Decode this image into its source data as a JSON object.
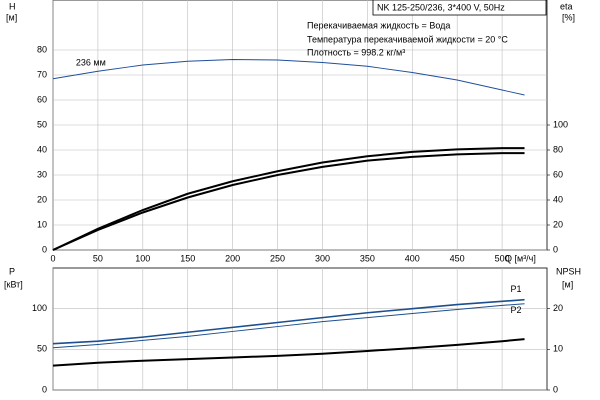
{
  "chart_data": [
    {
      "type": "line",
      "title": "NK 125-250/236, 3*400 V, 50Hz",
      "notes": [
        "Перекачиваемая жидкость = Вода",
        "Температура перекачиваемой жидкости = 20 °C",
        "Плотность = 998.2 кг/м³"
      ],
      "y_label": "H",
      "y_unit": "[м]",
      "y2_label": "eta",
      "y2_unit": "[%]",
      "x_label": "Q [м³/ч]",
      "x": [
        0,
        50,
        100,
        150,
        200,
        250,
        300,
        350,
        400,
        450,
        500,
        525
      ],
      "xlim": [
        0,
        550
      ],
      "xticks": [
        0,
        50,
        100,
        150,
        200,
        250,
        300,
        350,
        400,
        450,
        500
      ],
      "ylim": [
        0,
        100
      ],
      "yticks": [
        0,
        10,
        20,
        30,
        40,
        50,
        60,
        70,
        80
      ],
      "y2lim": [
        0,
        200
      ],
      "y2ticks": [
        0,
        20,
        40,
        60,
        80,
        100
      ],
      "grid": true,
      "series": [
        {
          "name": "236 мм",
          "color": "#1f4e9c",
          "values": [
            68.5,
            71.5,
            74,
            75.5,
            76.2,
            76,
            75,
            73.5,
            71,
            68,
            64,
            62
          ]
        },
        {
          "color": "#000000",
          "axis": "y2",
          "values": [
            0,
            17,
            32,
            45,
            55,
            63,
            70,
            75,
            78.5,
            80.5,
            81.5,
            81.5
          ]
        },
        {
          "color": "#000000",
          "axis": "y2",
          "values": [
            0,
            16,
            30,
            42,
            52,
            60,
            66.5,
            71.5,
            74.5,
            76.5,
            77.5,
            77.5
          ]
        }
      ]
    },
    {
      "type": "line",
      "y_label": "P",
      "y_unit": "[кВт]",
      "y2_label": "NPSH",
      "y2_unit": "[м]",
      "x": [
        0,
        50,
        100,
        150,
        200,
        250,
        300,
        350,
        400,
        450,
        500,
        525
      ],
      "xlim": [
        0,
        550
      ],
      "xticks": [
        0,
        50,
        100,
        150,
        200,
        250,
        300,
        350,
        400,
        450,
        500
      ],
      "xtick_labels": false,
      "ylim": [
        0,
        150
      ],
      "yticks": [
        0,
        50,
        100
      ],
      "y2lim": [
        0,
        30
      ],
      "y2ticks": [
        0,
        10,
        20
      ],
      "grid": true,
      "series": [
        {
          "name": "P1",
          "color": "#1c4f8f",
          "values": [
            57,
            60,
            65,
            71,
            77,
            83,
            89,
            95,
            100,
            105,
            109,
            111
          ]
        },
        {
          "name": "P2",
          "color": "#1c4f8f",
          "values": [
            52,
            56,
            61,
            66,
            72,
            78,
            84,
            89,
            94,
            99,
            104,
            106
          ]
        },
        {
          "color": "#000000",
          "axis": "y2",
          "values": [
            6,
            6.7,
            7.2,
            7.6,
            8,
            8.4,
            8.9,
            9.6,
            10.3,
            11.1,
            12,
            12.5
          ]
        }
      ]
    }
  ]
}
